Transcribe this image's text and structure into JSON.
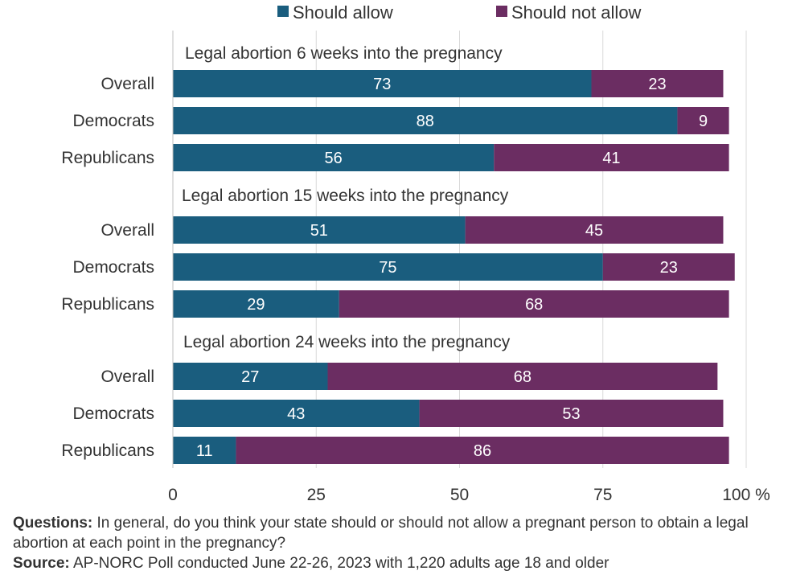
{
  "chart_data": {
    "type": "bar",
    "orientation": "horizontal",
    "stacked": true,
    "legend": [
      {
        "label": "Should allow",
        "color": "#1a5d7e"
      },
      {
        "label": "Should not allow",
        "color": "#6b2d62"
      }
    ],
    "xlim": [
      0,
      100
    ],
    "xticks": [
      "0",
      "25",
      "50",
      "75",
      "100 %"
    ],
    "grid": true,
    "groups": [
      {
        "title": "Legal abortion 6 weeks into the pregnancy",
        "rows": [
          {
            "label": "Overall",
            "allow": 73,
            "not_allow": 23
          },
          {
            "label": "Democrats",
            "allow": 88,
            "not_allow": 9
          },
          {
            "label": "Republicans",
            "allow": 56,
            "not_allow": 41
          }
        ]
      },
      {
        "title": "Legal abortion 15 weeks into the pregnancy",
        "rows": [
          {
            "label": "Overall",
            "allow": 51,
            "not_allow": 45
          },
          {
            "label": "Democrats",
            "allow": 75,
            "not_allow": 23
          },
          {
            "label": "Republicans",
            "allow": 29,
            "not_allow": 68
          }
        ]
      },
      {
        "title": "Legal abortion 24 weeks into the pregnancy",
        "rows": [
          {
            "label": "Overall",
            "allow": 27,
            "not_allow": 68
          },
          {
            "label": "Democrats",
            "allow": 43,
            "not_allow": 53
          },
          {
            "label": "Republicans",
            "allow": 11,
            "not_allow": 86
          }
        ]
      }
    ]
  },
  "notes": {
    "questions_label": "Questions:",
    "questions_text": " In general, do you think your state should or should not allow a pregnant person to obtain a legal abortion at each point in the pregnancy?",
    "source_label": "Source:",
    "source_text": " AP-NORC Poll conducted June 22-26, 2023 with 1,220 adults age 18 and older"
  }
}
